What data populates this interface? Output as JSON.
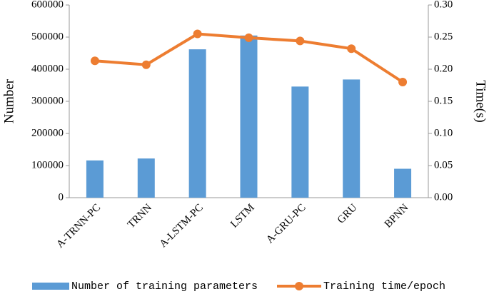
{
  "chart_data": {
    "type": "bar",
    "categories": [
      "A-TRNN-PC",
      "TRNN",
      "A-LSTM-PC",
      "LSTM",
      "A-GRU-PC",
      "GRU",
      "BPNN"
    ],
    "series": [
      {
        "name": "Number of training parameters",
        "type": "bar",
        "color": "#5b9bd5",
        "values": [
          116000,
          122000,
          462000,
          505000,
          346000,
          368000,
          90000
        ]
      },
      {
        "name": "Training time/epoch",
        "type": "line",
        "axis": "y2",
        "color": "#ed7d31",
        "values": [
          0.213,
          0.207,
          0.255,
          0.249,
          0.244,
          0.232,
          0.18
        ]
      }
    ],
    "ylabel": "Number",
    "y2label": "Time(s)",
    "ylim": [
      0,
      600000
    ],
    "yticks": [
      0,
      100000,
      200000,
      300000,
      400000,
      500000,
      600000
    ],
    "y2lim": [
      0,
      0.3
    ],
    "y2ticks": [
      {
        "value": 0,
        "label": "0.00"
      },
      0.05,
      {
        "value": 0.1,
        "label": "0.10"
      },
      0.15,
      {
        "value": 0.2,
        "label": "0.20"
      },
      0.25,
      {
        "value": 0.3,
        "label": "0.30"
      }
    ],
    "legend": "bottom"
  }
}
